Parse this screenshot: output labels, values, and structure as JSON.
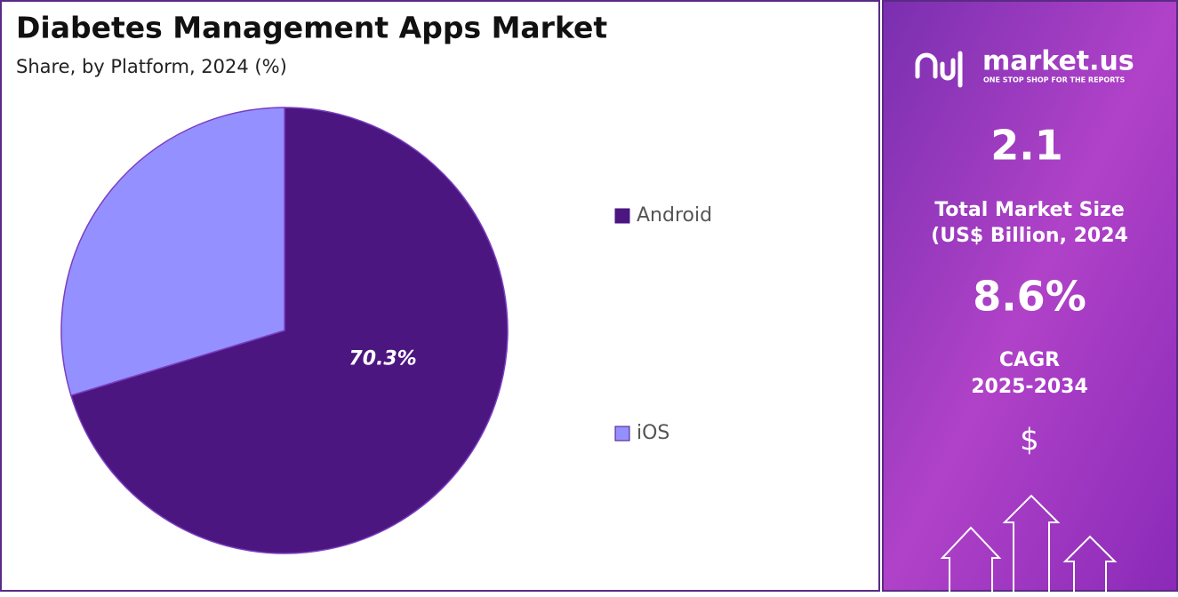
{
  "chart_data": {
    "type": "pie",
    "title": "Diabetes Management Apps Market",
    "subtitle": "Share, by Platform, 2024 (%)",
    "categories": [
      "Android",
      "iOS"
    ],
    "values": [
      70.3,
      29.7
    ],
    "value_labels": [
      "70.3%",
      null
    ],
    "colors": [
      "#4b1680",
      "#9590ff"
    ],
    "legend": "right"
  },
  "panel": {
    "brand": "market.us",
    "tagline": "ONE STOP SHOP FOR THE REPORTS",
    "market_size": "2.1",
    "market_size_label": [
      "Total Market Size",
      "(US$ Billion, 2024"
    ],
    "cagr": "8.6%",
    "cagr_label": [
      "CAGR",
      "2025-2034"
    ],
    "currency_icon": "$"
  }
}
